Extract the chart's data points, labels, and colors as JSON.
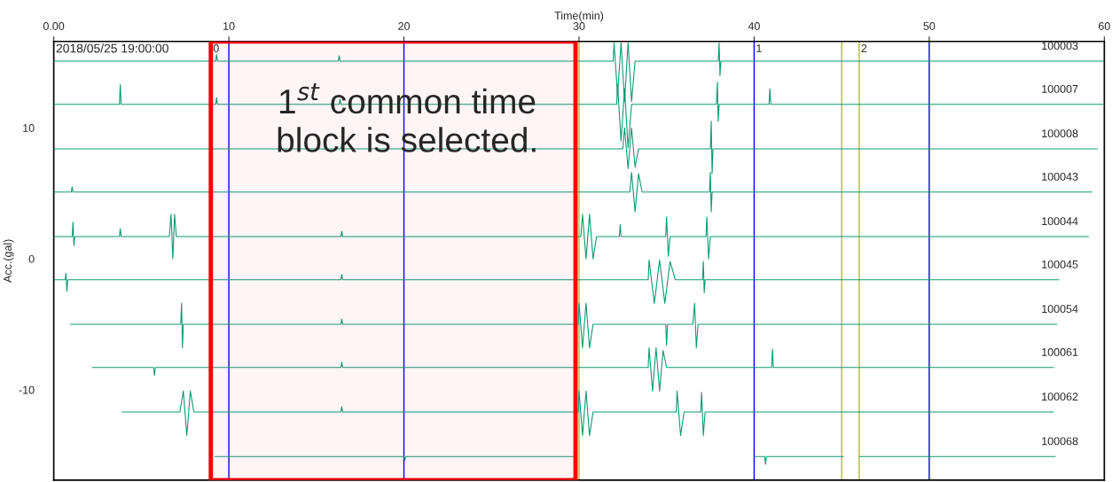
{
  "chart_data": {
    "type": "line",
    "xlabel": "Time(min)",
    "ylabel": "Acc.(gal)",
    "xlim": [
      0,
      60
    ],
    "xticks": [
      {
        "value": 0,
        "label": "0.00"
      },
      10,
      20,
      30,
      40,
      50,
      60
    ],
    "ylim": [
      -16.9,
      16.6
    ],
    "yticks": [
      10,
      0,
      -10
    ],
    "grid": false,
    "legend": false,
    "marker": "none",
    "line_style": "solid",
    "annotations": [
      "2018/05/25 19:00:00",
      {
        "text": "0",
        "x": 9,
        "y": 16.4
      },
      {
        "text": "1",
        "x": 40,
        "y": 16.4
      },
      {
        "text": "2",
        "x": 46,
        "y": 16.4
      }
    ],
    "ref_lines": [
      {
        "axis": "x",
        "value": 10,
        "color": "#0000ff"
      },
      {
        "axis": "x",
        "value": 20,
        "color": "#0000ff"
      },
      {
        "axis": "x",
        "value": 30,
        "color": "#b5b53c"
      },
      {
        "axis": "x",
        "value": 40,
        "color": "#0000ff"
      },
      {
        "axis": "x",
        "value": 45,
        "color": "#b5b53c"
      },
      {
        "axis": "x",
        "value": 46,
        "color": "#b5b53c"
      },
      {
        "axis": "x",
        "value": 50,
        "color": "#0000ff"
      }
    ],
    "bands": [
      {
        "axis": "x",
        "from": 8.97,
        "to": 29.8,
        "label": "1$^{st}$ common time\nblock is selected.",
        "color": "#ff0000"
      }
    ],
    "series": [
      {
        "name": "100003",
        "color": "#0f9a73",
        "x": [
          0,
          9.25,
          9.3,
          9.35,
          16.25,
          16.3,
          16.35,
          31.95,
          32,
          32.2,
          32.4,
          32.6,
          32.8,
          33,
          33.2,
          37.95,
          38,
          38.05,
          38.1,
          60
        ],
        "values": [
          15.1,
          15.1,
          15.6,
          15.1,
          15.1,
          15.5,
          15.1,
          15.1,
          16.5,
          12.5,
          16.5,
          12,
          16.5,
          12,
          15.1,
          15.1,
          16.5,
          14,
          15.1,
          15.1
        ]
      },
      {
        "name": "100007",
        "color": "#0f9a73",
        "x": [
          0,
          3.75,
          3.8,
          3.85,
          9.25,
          9.3,
          9.35,
          16.3,
          16.35,
          16.4,
          32.15,
          32.2,
          32.4,
          32.6,
          32.8,
          33,
          37.85,
          37.9,
          37.95,
          38,
          40.85,
          40.9,
          40.95,
          60
        ],
        "values": [
          11.8,
          11.8,
          13.3,
          11.8,
          11.8,
          12.3,
          11.8,
          11.8,
          12.2,
          11.8,
          11.8,
          13.3,
          9,
          13,
          8.5,
          11.8,
          11.8,
          13.5,
          10.5,
          11.8,
          11.8,
          13,
          11.8,
          11.8
        ]
      },
      {
        "name": "100008",
        "color": "#0f9a73",
        "x": [
          0,
          16.4,
          16.45,
          16.5,
          32.5,
          32.6,
          32.8,
          33,
          33.2,
          33.4,
          37.5,
          37.55,
          37.6,
          37.65,
          59.6
        ],
        "values": [
          8.4,
          8.4,
          8.8,
          8.4,
          8.4,
          10,
          6.9,
          10,
          7,
          8.4,
          8.4,
          10.5,
          6.5,
          8.4,
          8.4
        ]
      },
      {
        "name": "100043",
        "color": "#0f9a73",
        "x": [
          0,
          1,
          1.05,
          1.1,
          32.9,
          33,
          33.2,
          33.4,
          33.6,
          37.45,
          37.5,
          37.55,
          37.6,
          59.3
        ],
        "values": [
          5.1,
          5.1,
          5.5,
          5.1,
          5.1,
          6.6,
          3.6,
          6.5,
          5.1,
          5.1,
          6.6,
          3.6,
          5.1,
          5.1
        ]
      },
      {
        "name": "100044",
        "color": "#0f9a73",
        "x": [
          0,
          1.05,
          1.1,
          1.15,
          1.2,
          3.75,
          3.8,
          3.85,
          6.6,
          6.7,
          6.8,
          6.9,
          7,
          16.4,
          16.45,
          16.5,
          30.1,
          30.2,
          30.4,
          30.6,
          30.8,
          31,
          32.3,
          32.35,
          32.4,
          34.95,
          35,
          35.1,
          35.2,
          37.25,
          37.3,
          37.4,
          37.5,
          59.1
        ],
        "values": [
          1.7,
          1.7,
          2.8,
          1,
          1.7,
          1.7,
          2.3,
          1.7,
          1.7,
          3.4,
          0,
          3.4,
          1.7,
          1.7,
          2.1,
          1.7,
          1.7,
          3.4,
          0,
          3.4,
          0,
          1.7,
          1.7,
          2.6,
          1.7,
          1.7,
          3.2,
          0.2,
          1.7,
          1.7,
          3.2,
          0,
          1.7,
          1.7
        ]
      },
      {
        "name": "100045",
        "color": "#0f9a73",
        "x": [
          0,
          0.65,
          0.7,
          0.75,
          0.8,
          16.4,
          16.45,
          16.5,
          33.95,
          34,
          34.3,
          34.6,
          34.9,
          35.2,
          35.5,
          37.05,
          37.1,
          37.15,
          37.2,
          57.4
        ],
        "values": [
          -1.6,
          -1.6,
          -1.1,
          -2.5,
          -1.6,
          -1.6,
          -1.2,
          -1.6,
          -1.6,
          -0.1,
          -3.4,
          -0.1,
          -3.4,
          -0.2,
          -1.6,
          -1.6,
          -0.2,
          -2.6,
          -1.6,
          -1.6
        ]
      },
      {
        "name": "100054",
        "color": "#0f9a73",
        "x": [
          0.96,
          7.25,
          7.3,
          7.35,
          7.4,
          16.4,
          16.45,
          16.5,
          29.95,
          30,
          30.2,
          30.4,
          30.6,
          30.8,
          34.95,
          35,
          35.05,
          36.5,
          36.6,
          36.7,
          36.8,
          57.3
        ],
        "values": [
          -5,
          -5,
          -3.4,
          -6.8,
          -5,
          -5,
          -4.6,
          -5,
          -5,
          -3.4,
          -6.8,
          -3.4,
          -6.8,
          -5,
          -5,
          -6.6,
          -5,
          -5,
          -3.4,
          -6.8,
          -5,
          -5
        ]
      },
      {
        "name": "100061",
        "color": "#0f9a73",
        "x": [
          2.2,
          5.7,
          5.75,
          5.8,
          16.4,
          16.45,
          16.5,
          33.95,
          34,
          34.2,
          34.4,
          34.6,
          34.8,
          35,
          41,
          41.05,
          41.1,
          57.1
        ],
        "values": [
          -8.3,
          -8.3,
          -8.9,
          -8.3,
          -8.3,
          -7.9,
          -8.3,
          -8.3,
          -6.8,
          -10.1,
          -6.8,
          -10.1,
          -7,
          -8.3,
          -8.3,
          -6.9,
          -8.3,
          -8.3
        ]
      },
      {
        "name": "100062",
        "color": "#0f9a73",
        "x": [
          3.9,
          7.2,
          7.4,
          7.6,
          7.8,
          8,
          16.4,
          16.45,
          16.5,
          29.95,
          30,
          30.2,
          30.4,
          30.6,
          30.8,
          35.55,
          35.6,
          35.8,
          36,
          36.95,
          37,
          37.1,
          37.2,
          57.1
        ],
        "values": [
          -11.7,
          -11.7,
          -10.1,
          -13.5,
          -10.1,
          -11.7,
          -11.7,
          -11.3,
          -11.7,
          -11.7,
          -10.1,
          -13.5,
          -10.1,
          -13.5,
          -11.7,
          -11.7,
          -10.1,
          -13.5,
          -11.7,
          -11.7,
          -10.2,
          -13.5,
          -11.7,
          -11.7
        ]
      },
      {
        "name": "100068",
        "color": "#0f9a73",
        "x": [
          9.2,
          20,
          20.05,
          20.1,
          29.8,
          29.9,
          40,
          40.6,
          40.65,
          40.7,
          45.1,
          45.2,
          46,
          57.2
        ],
        "values": [
          -15.1,
          -15.1,
          -15.4,
          -15.1,
          -15.1,
          null,
          -15.1,
          -15.1,
          -15.7,
          -15.1,
          -15.1,
          null,
          -15.1,
          -15.1
        ]
      }
    ]
  }
}
